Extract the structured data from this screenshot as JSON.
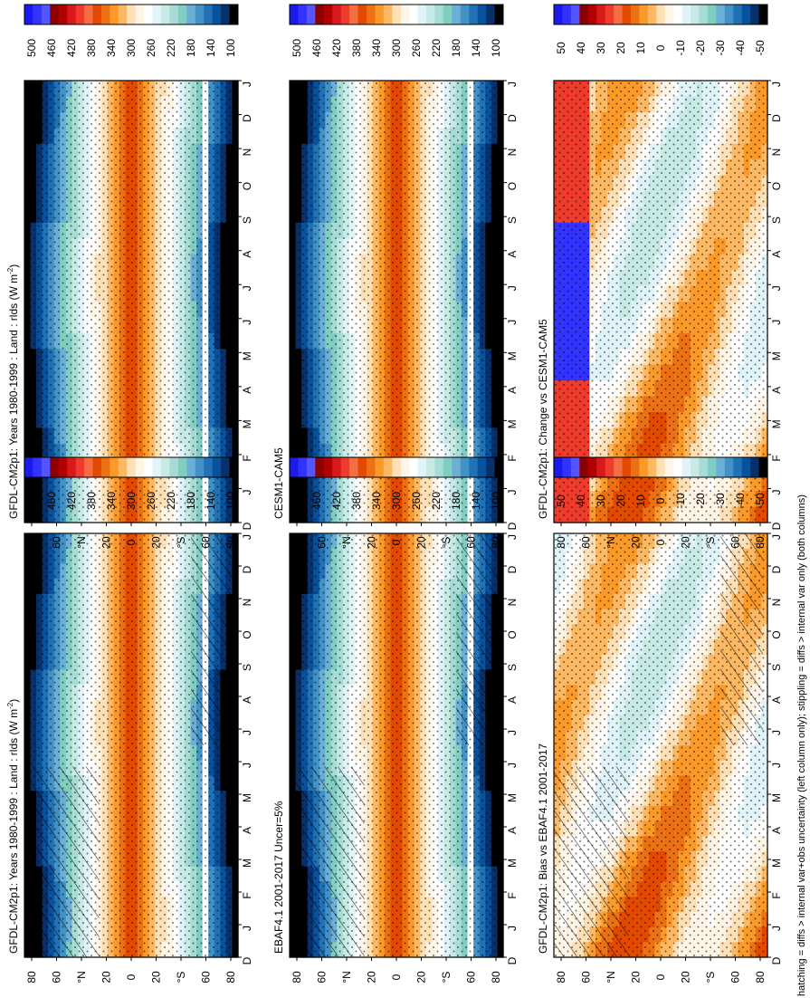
{
  "footer_note": "hatching = diffs > internal var+obs uncertainty (left column only); stippling = diffs > internal var only (both columns)",
  "colorbars": {
    "absolute": {
      "ticks": [
        "500",
        "460",
        "420",
        "380",
        "340",
        "300",
        "260",
        "220",
        "180",
        "140",
        "100"
      ],
      "colors": [
        "#1a1aee",
        "#3333ff",
        "#5555ff",
        "#8b0000",
        "#b30000",
        "#d7191c",
        "#ef3b2c",
        "#f46d43",
        "#e34a00",
        "#ec7014",
        "#fb9a29",
        "#fdb863",
        "#fee0b6",
        "#fff5e6",
        "#ffffff",
        "#e0f3f8",
        "#c7eae5",
        "#a6dbd6",
        "#80cdc1",
        "#6baed6",
        "#4292c6",
        "#2171b5",
        "#08519c",
        "#08306b",
        "#000000"
      ]
    },
    "difference": {
      "ticks": [
        "50",
        "40",
        "30",
        "20",
        "10",
        "0",
        "-10",
        "-20",
        "-30",
        "-40",
        "-50"
      ],
      "colors": [
        "#1a1aee",
        "#3333ff",
        "#5555ff",
        "#8b0000",
        "#b30000",
        "#d7191c",
        "#ef3b2c",
        "#f46d43",
        "#e34a00",
        "#ec7014",
        "#fb9a29",
        "#fdb863",
        "#fee0b6",
        "#fff5e6",
        "#ffffff",
        "#e0f3f8",
        "#c7eae5",
        "#a6dbd6",
        "#80cdc1",
        "#6baed6",
        "#4292c6",
        "#2171b5",
        "#08519c",
        "#08306b",
        "#000000"
      ]
    }
  },
  "axis_labels": {
    "months": [
      "D",
      "J",
      "F",
      "M",
      "A",
      "M",
      "J",
      "J",
      "A",
      "S",
      "O",
      "N",
      "D",
      "J"
    ],
    "lat_ticks": [
      "80",
      "60",
      "°N",
      "20",
      "0",
      "20",
      "°S",
      "60",
      "80"
    ]
  },
  "chart_data": [
    {
      "type": "heatmap",
      "panel": "top-left",
      "title": "GFDL-CM2p1: Years 1980-1999 : Land : rlds (W m",
      "title_sup": "-2",
      "title_end": ")",
      "colorbar": "absolute",
      "hatching": true,
      "stippling": true
    },
    {
      "type": "heatmap",
      "panel": "top-right",
      "title": "GFDL-CM2p1: Years 1980-1999 : Land : rlds (W m",
      "title_sup": "-2",
      "title_end": ")",
      "colorbar": "absolute",
      "hatching": false,
      "stippling": true
    },
    {
      "type": "heatmap",
      "panel": "middle-left",
      "title": "EBAF4.1 2001-2017 Uncer=5%",
      "colorbar": "absolute",
      "hatching": true,
      "stippling": true
    },
    {
      "type": "heatmap",
      "panel": "middle-right",
      "title": "CESM1-CAM5",
      "colorbar": "absolute",
      "hatching": false,
      "stippling": true
    },
    {
      "type": "heatmap",
      "panel": "bottom-left",
      "title": "GFDL-CM2p1: Bias vs EBAF4.1 2001-2017",
      "colorbar": "difference",
      "hatching": true,
      "stippling": true
    },
    {
      "type": "heatmap",
      "panel": "bottom-right",
      "title": "GFDL-CM2p1: Change vs CESM1-CAM5",
      "colorbar": "difference",
      "hatching": false,
      "stippling": true
    }
  ]
}
